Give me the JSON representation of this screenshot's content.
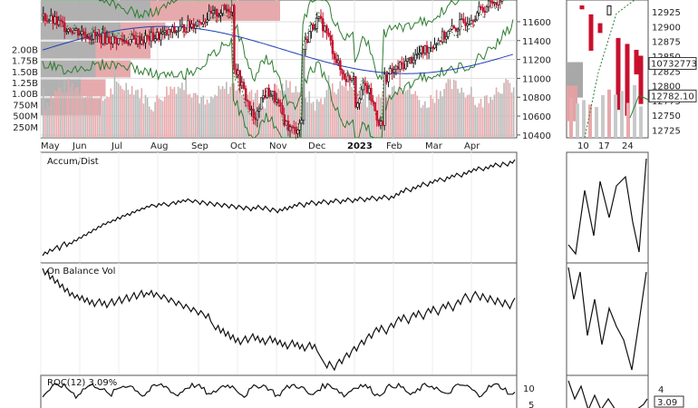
{
  "chart_data": {
    "type": "line",
    "main_panel": {
      "x_axis_labels": [
        "May",
        "Jun",
        "Jul",
        "Aug",
        "Sep",
        "Oct",
        "Nov",
        "Dec",
        "2023",
        "Feb",
        "Mar",
        "Apr"
      ],
      "x_axis_year_label": "2023",
      "price_axis_ticks": [
        11600,
        11400,
        11200,
        11000,
        10800,
        10600,
        10400
      ],
      "price_range": [
        10370,
        11830
      ],
      "volume_axis_ticks": [
        "2.00B",
        "1.75B",
        "1.50B",
        "1.25B",
        "1.00B",
        "750M",
        "500M",
        "250M"
      ],
      "volume_range": [
        0,
        2500000000
      ],
      "volume_by_price_bars": [
        {
          "price_low": 11600,
          "price_high": 11830,
          "gray_volume": 1.1,
          "red_volume": 1.3
        },
        {
          "price_low": 11400,
          "price_high": 11600,
          "gray_volume": 0.8,
          "red_volume": 0.45
        },
        {
          "price_low": 11200,
          "price_high": 11400,
          "gray_volume": 0.55,
          "red_volume": 0.55
        },
        {
          "price_low": 11000,
          "price_high": 11200,
          "gray_volume": 0.55,
          "red_volume": 0.35
        },
        {
          "price_low": 10800,
          "price_high": 11000,
          "gray_volume": 0.4,
          "red_volume": 0.25
        },
        {
          "price_low": 10600,
          "price_high": 10800,
          "gray_volume": 0.25,
          "red_volume": 0.35
        }
      ]
    },
    "detail_panel": {
      "x_axis_labels": [
        "10",
        "17",
        "24"
      ],
      "price_axis_ticks": [
        12925,
        12900,
        12875,
        12850,
        12825,
        12800,
        12775,
        12750,
        12725
      ],
      "price_range": [
        12712,
        12945
      ],
      "price_labels": [
        "10732773",
        "12782.10"
      ]
    },
    "indicators": [
      {
        "title": "Accum/Dist",
        "values": [
          2,
          6,
          4,
          9,
          7,
          10,
          13,
          8,
          14,
          17,
          12,
          16,
          15,
          19,
          18,
          22,
          21,
          25,
          24,
          28,
          27,
          31,
          30,
          34,
          33,
          37,
          36,
          39,
          38,
          41,
          40,
          44,
          42,
          46,
          45,
          48,
          46,
          50,
          49,
          52,
          51,
          54,
          53,
          56,
          55,
          58,
          57,
          55,
          59,
          57,
          60,
          58,
          56,
          59,
          61,
          58,
          62,
          60,
          63,
          61,
          64,
          62,
          60,
          63,
          61,
          58,
          62,
          60,
          57,
          61,
          59,
          56,
          60,
          58,
          55,
          59,
          57,
          54,
          58,
          56,
          53,
          57,
          55,
          52,
          56,
          54,
          51,
          55,
          53,
          57,
          54,
          52,
          56,
          53,
          50,
          54,
          52,
          49,
          53,
          51,
          55,
          52,
          56,
          54,
          58,
          56,
          60,
          58,
          55,
          60,
          58,
          62,
          60,
          57,
          61,
          59,
          63,
          61,
          58,
          62,
          60,
          64,
          62,
          59,
          63,
          61,
          65,
          63,
          60,
          64,
          62,
          66,
          64,
          61,
          65,
          63,
          67,
          65,
          62,
          66,
          64,
          68,
          66,
          63,
          67,
          65,
          70,
          68,
          73,
          71,
          76,
          74,
          72,
          77,
          75,
          79,
          77,
          82,
          80,
          78,
          83,
          81,
          85,
          83,
          87,
          85,
          83,
          88,
          86,
          90,
          88,
          92,
          90,
          88,
          93,
          91,
          95,
          93,
          97,
          95,
          99,
          97,
          95,
          99,
          97,
          101,
          99,
          103,
          101,
          99,
          104,
          102,
          100,
          105,
          103,
          107
        ]
      },
      {
        "title": "On Balance Vol",
        "values": [
          98,
          92,
          96,
          88,
          91,
          84,
          87,
          80,
          83,
          76,
          79,
          72,
          75,
          70,
          73,
          68,
          72,
          66,
          70,
          64,
          68,
          62,
          66,
          69,
          63,
          67,
          61,
          65,
          69,
          63,
          67,
          71,
          65,
          69,
          73,
          67,
          71,
          75,
          69,
          73,
          77,
          71,
          75,
          73,
          77,
          71,
          75,
          72,
          69,
          73,
          70,
          66,
          70,
          67,
          63,
          67,
          64,
          60,
          64,
          61,
          57,
          61,
          58,
          54,
          58,
          55,
          51,
          55,
          48,
          44,
          40,
          44,
          37,
          41,
          34,
          38,
          31,
          35,
          28,
          32,
          26,
          30,
          34,
          28,
          32,
          36,
          30,
          34,
          28,
          32,
          26,
          30,
          34,
          28,
          32,
          26,
          30,
          24,
          28,
          22,
          26,
          30,
          24,
          28,
          22,
          26,
          20,
          24,
          28,
          22,
          26,
          20,
          16,
          12,
          8,
          4,
          10,
          6,
          2,
          8,
          12,
          8,
          14,
          18,
          14,
          20,
          24,
          20,
          26,
          30,
          26,
          32,
          36,
          32,
          38,
          42,
          38,
          44,
          40,
          36,
          42,
          46,
          42,
          48,
          52,
          48,
          54,
          50,
          46,
          52,
          56,
          52,
          58,
          54,
          50,
          56,
          60,
          56,
          62,
          58,
          54,
          60,
          64,
          60,
          66,
          62,
          58,
          64,
          68,
          64,
          70,
          74,
          70,
          66,
          72,
          76,
          72,
          68,
          74,
          70,
          66,
          72,
          68,
          64,
          70,
          66,
          62,
          68,
          64,
          60,
          66,
          70
        ]
      },
      {
        "title": "ROC(12) 3.09%",
        "axis_ticks": [
          10,
          5
        ],
        "value_label": "3.09"
      }
    ]
  },
  "right_strip": {
    "roc_ticks": [
      "4",
      "3.09"
    ]
  }
}
